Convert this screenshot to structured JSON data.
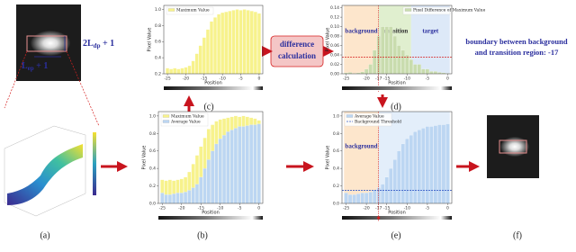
{
  "chart_data": [
    {
      "type": "bar",
      "panel_label": "(c)",
      "xlabel": "Position",
      "ylabel": "Pixel Value",
      "x": [
        -25,
        -24,
        -23,
        -22,
        -21,
        -20,
        -19,
        -18,
        -17,
        -16,
        -15,
        -14,
        -13,
        -12,
        -11,
        -10,
        -9,
        -8,
        -7,
        -6,
        -5,
        -4,
        -3,
        -2,
        -1,
        0
      ],
      "series": [
        {
          "name": "Maximum Value",
          "color": "#f7f28c",
          "values": [
            0.27,
            0.26,
            0.27,
            0.26,
            0.27,
            0.28,
            0.3,
            0.36,
            0.45,
            0.55,
            0.65,
            0.75,
            0.85,
            0.9,
            0.94,
            0.96,
            0.97,
            0.98,
            0.99,
            1.0,
            0.99,
            1.0,
            0.99,
            0.98,
            0.97,
            0.95
          ]
        }
      ],
      "xlim": [
        -26,
        1
      ],
      "xticks": [
        -25,
        -20,
        -15,
        -10,
        -5,
        0
      ],
      "ylim": [
        0.2,
        1.05
      ],
      "yticks": [
        0.2,
        0.4,
        0.6,
        0.8,
        {
          "value": 1,
          "label": "1.0"
        }
      ],
      "legend": "upper left"
    },
    {
      "type": "bar",
      "panel_label": "(b)",
      "xlabel": "Position",
      "ylabel": "Pixel Value",
      "x": [
        -25,
        -24,
        -23,
        -22,
        -21,
        -20,
        -19,
        -18,
        -17,
        -16,
        -15,
        -14,
        -13,
        -12,
        -11,
        -10,
        -9,
        -8,
        -7,
        -6,
        -5,
        -4,
        -3,
        -2,
        -1,
        0
      ],
      "series": [
        {
          "name": "Maximum Value",
          "color": "#f7f28c",
          "values": [
            0.27,
            0.26,
            0.27,
            0.26,
            0.27,
            0.28,
            0.3,
            0.36,
            0.45,
            0.55,
            0.65,
            0.75,
            0.85,
            0.9,
            0.94,
            0.96,
            0.97,
            0.98,
            0.99,
            1.0,
            0.99,
            1.0,
            0.99,
            0.98,
            0.97,
            0.95
          ]
        },
        {
          "name": "Average Value",
          "color": "#bcd6f2",
          "values": [
            0.12,
            0.1,
            0.1,
            0.11,
            0.12,
            0.12,
            0.13,
            0.15,
            0.18,
            0.22,
            0.3,
            0.4,
            0.5,
            0.6,
            0.68,
            0.74,
            0.78,
            0.82,
            0.84,
            0.86,
            0.88,
            0.88,
            0.89,
            0.9,
            0.9,
            0.91
          ]
        }
      ],
      "xlim": [
        -26,
        1
      ],
      "xticks": [
        -25,
        -20,
        -15,
        -10,
        -5,
        0
      ],
      "ylim": [
        0,
        1.05
      ],
      "yticks": [
        {
          "value": 0,
          "label": "0.0"
        },
        0.2,
        0.4,
        0.6,
        0.8,
        {
          "value": 1,
          "label": "1.0"
        }
      ],
      "legend": "upper left"
    },
    {
      "type": "bar",
      "panel_label": "(d)",
      "xlabel": "Position",
      "ylabel": "Pixel Value",
      "x": [
        -25,
        -24,
        -23,
        -22,
        -21,
        -20,
        -19,
        -18,
        -17,
        -16,
        -15,
        -14,
        -13,
        -12,
        -11,
        -10,
        -9,
        -8,
        -7,
        -6,
        -5,
        -4,
        -3,
        -2,
        -1,
        0
      ],
      "series": [
        {
          "name": "Pixel Difference of Maximum Value",
          "color": "#c9dcae",
          "values": [
            0.002,
            0.003,
            0.001,
            0.002,
            0.004,
            0.01,
            0.02,
            0.05,
            0.08,
            0.1,
            0.1,
            0.1,
            0.08,
            0.06,
            0.05,
            0.04,
            0.03,
            0.02,
            0.02,
            0.01,
            0.01,
            0.005,
            0.005,
            0.003,
            0.002,
            0.001
          ]
        }
      ],
      "xlim": [
        -26,
        1
      ],
      "xticks": [
        -25,
        -20,
        -17,
        -15,
        -10,
        -5,
        0
      ],
      "ylim": [
        0,
        0.145
      ],
      "yticks": [
        {
          "value": 0,
          "label": "0.00"
        },
        0.02,
        0.04,
        0.06,
        0.08,
        {
          "value": 0.1,
          "label": "0.10"
        },
        0.12,
        0.14
      ],
      "legend": "upper right",
      "threshold": {
        "value": 0.035,
        "color": "#d62020"
      },
      "boundary": -17,
      "regions": [
        {
          "label": "background",
          "from": -25.5,
          "to": -17,
          "color": "#fde6cc"
        },
        {
          "label": "transition",
          "from": -17,
          "to": -9,
          "color": "#e0efcf"
        },
        {
          "label": "target",
          "from": -9,
          "to": 0.5,
          "color": "#dde9f8"
        }
      ]
    },
    {
      "type": "bar",
      "panel_label": "(e)",
      "xlabel": "Position",
      "ylabel": "Pixel Value",
      "x": [
        -25,
        -24,
        -23,
        -22,
        -21,
        -20,
        -19,
        -18,
        -17,
        -16,
        -15,
        -14,
        -13,
        -12,
        -11,
        -10,
        -9,
        -8,
        -7,
        -6,
        -5,
        -4,
        -3,
        -2,
        -1,
        0
      ],
      "series": [
        {
          "name": "Average Value",
          "color": "#bcd6f2",
          "values": [
            0.12,
            0.1,
            0.1,
            0.11,
            0.12,
            0.12,
            0.13,
            0.15,
            0.18,
            0.22,
            0.3,
            0.4,
            0.5,
            0.6,
            0.68,
            0.74,
            0.78,
            0.82,
            0.84,
            0.86,
            0.88,
            0.88,
            0.89,
            0.9,
            0.9,
            0.91
          ]
        }
      ],
      "xlim": [
        -26,
        1
      ],
      "xticks": [
        -25,
        -20,
        -17,
        -15,
        -10,
        -5,
        0
      ],
      "ylim": [
        0,
        1.05
      ],
      "yticks": [
        {
          "value": 0,
          "label": "0.0"
        },
        0.2,
        0.4,
        0.6,
        0.8,
        {
          "value": 1,
          "label": "1.0"
        }
      ],
      "legend": "upper left",
      "threshold": {
        "value": 0.15,
        "color": "#3a5fc8",
        "name": "Background Threshold"
      },
      "boundary": -17,
      "regions": [
        {
          "label": "background",
          "from": -25.5,
          "to": -17,
          "color": "#fde6cc"
        },
        {
          "from": -17,
          "to": 0.5,
          "color": "#e3eefa"
        }
      ]
    }
  ],
  "figure": {
    "panel_a_label": "(a)",
    "panel_f_label": "(f)",
    "height_label": {
      "main": "2L",
      "sub": "dp",
      "rest": " + 1"
    },
    "width_label": {
      "main": "L",
      "sub": "ep",
      "rest": " + 1"
    },
    "process": [
      "difference",
      "calculation"
    ],
    "boundary_note": [
      "boundary between background",
      "and transition region:  -17"
    ]
  }
}
